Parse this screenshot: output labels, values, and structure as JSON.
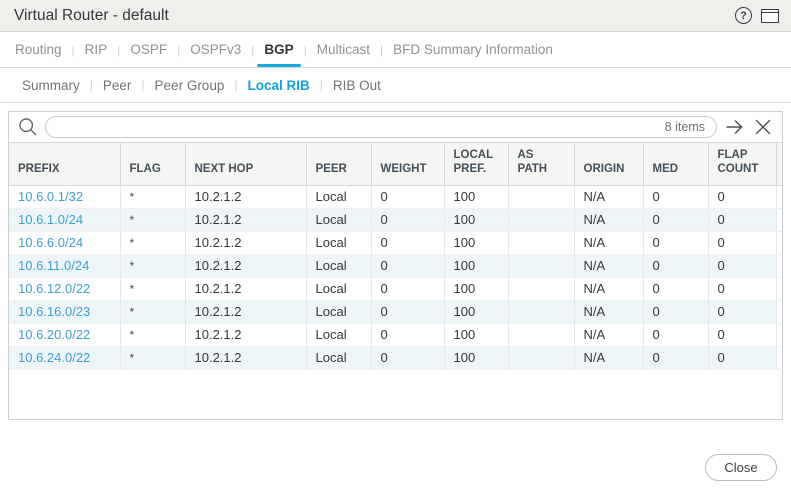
{
  "titlebar": {
    "title": "Virtual Router - default"
  },
  "icons": {
    "help": "?",
    "window": "window-frame",
    "search": "magnifier",
    "apply_filter": "arrow-right",
    "clear_filter": "x-mark"
  },
  "tabs_primary": {
    "separator": "|",
    "items": [
      {
        "label": "Routing",
        "active": false
      },
      {
        "label": "RIP",
        "active": false
      },
      {
        "label": "OSPF",
        "active": false
      },
      {
        "label": "OSPFv3",
        "active": false
      },
      {
        "label": "BGP",
        "active": true
      },
      {
        "label": "Multicast",
        "active": false
      },
      {
        "label": "BFD Summary Information",
        "active": false
      }
    ]
  },
  "tabs_secondary": {
    "separator": "|",
    "items": [
      {
        "label": "Summary",
        "active": false
      },
      {
        "label": "Peer",
        "active": false
      },
      {
        "label": "Peer Group",
        "active": false
      },
      {
        "label": "Local RIB",
        "active": true
      },
      {
        "label": "RIB Out",
        "active": false
      }
    ]
  },
  "search": {
    "value": "",
    "placeholder": "",
    "count_label": "8 items"
  },
  "table": {
    "columns": [
      "PREFIX",
      "FLAG",
      "NEXT HOP",
      "PEER",
      "WEIGHT",
      "LOCAL PREF.",
      "AS PATH",
      "ORIGIN",
      "MED",
      "FLAP COUNT"
    ],
    "rows": [
      [
        "10.6.0.1/32",
        "*",
        "10.2.1.2",
        "Local",
        "0",
        "100",
        "",
        "N/A",
        "0",
        "0"
      ],
      [
        "10.6.1.0/24",
        "*",
        "10.2.1.2",
        "Local",
        "0",
        "100",
        "",
        "N/A",
        "0",
        "0"
      ],
      [
        "10.6.6.0/24",
        "*",
        "10.2.1.2",
        "Local",
        "0",
        "100",
        "",
        "N/A",
        "0",
        "0"
      ],
      [
        "10.6.11.0/24",
        "*",
        "10.2.1.2",
        "Local",
        "0",
        "100",
        "",
        "N/A",
        "0",
        "0"
      ],
      [
        "10.6.12.0/22",
        "*",
        "10.2.1.2",
        "Local",
        "0",
        "100",
        "",
        "N/A",
        "0",
        "0"
      ],
      [
        "10.6.16.0/23",
        "*",
        "10.2.1.2",
        "Local",
        "0",
        "100",
        "",
        "N/A",
        "0",
        "0"
      ],
      [
        "10.6.20.0/22",
        "*",
        "10.2.1.2",
        "Local",
        "0",
        "100",
        "",
        "N/A",
        "0",
        "0"
      ],
      [
        "10.6.24.0/22",
        "*",
        "10.2.1.2",
        "Local",
        "0",
        "100",
        "",
        "N/A",
        "0",
        "0"
      ]
    ]
  },
  "footer": {
    "close_label": "Close"
  },
  "colors": {
    "accent_blue": "#17a7dc",
    "link_blue": "#3da0cc",
    "stripe_blue": "#edf5f9",
    "titlebar_bg": "#f0efec",
    "header_bg": "#f5f5f3"
  }
}
